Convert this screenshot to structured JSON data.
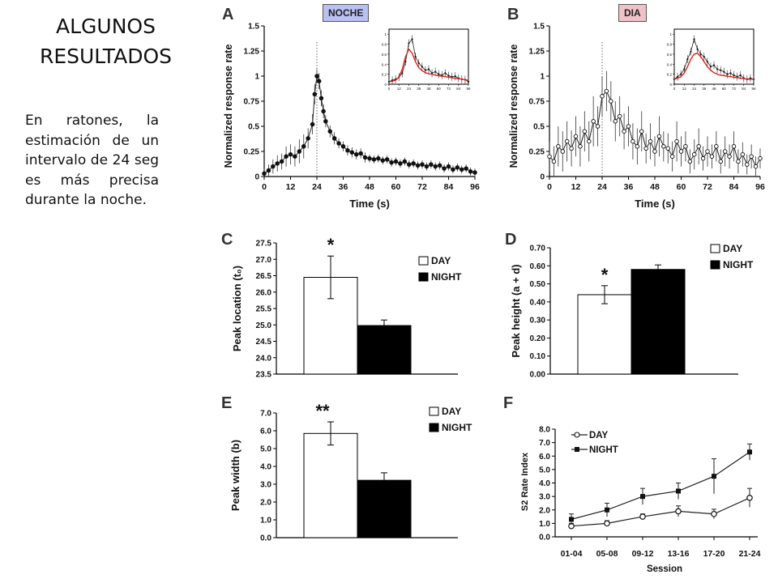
{
  "slide": {
    "title": "ALGUNOS RESULTADOS",
    "body": "En ratones, la estimación de un intervalo de 24 seg es más precisa durante la noche.",
    "badge_noche": "NOCHE",
    "badge_dia": "DIA"
  },
  "colors": {
    "bar_day": "#ffffff",
    "bar_night": "#000000",
    "fit_line": "#e0201b",
    "marker_line": "#666666"
  },
  "chart_data": [
    {
      "panel": "A",
      "type": "line",
      "xlabel": "Time (s)",
      "ylabel": "Normalized response rate",
      "xlim": [
        0,
        96
      ],
      "ylim": [
        0,
        1.5
      ],
      "xticks": [
        0,
        12,
        24,
        36,
        48,
        60,
        72,
        84,
        96
      ],
      "xtick_labels": [
        "0",
        "12",
        "24",
        "36",
        "48",
        "60",
        "72",
        "84",
        "96"
      ],
      "yticks": [
        0,
        0.25,
        0.5,
        0.75,
        1,
        1.25,
        1.5
      ],
      "ytick_labels": [
        "0",
        "0.25",
        "0.5",
        "0.75",
        "1",
        "1.25",
        "1.5"
      ],
      "marker_x": 24,
      "marker": "filled",
      "series": [
        {
          "x": [
            0,
            2,
            4,
            6,
            8,
            10,
            12,
            14,
            16,
            18,
            20,
            22,
            23,
            24,
            25,
            26,
            27,
            28,
            30,
            32,
            34,
            36,
            38,
            40,
            42,
            44,
            46,
            48,
            50,
            52,
            54,
            56,
            58,
            60,
            62,
            64,
            66,
            68,
            70,
            72,
            74,
            76,
            78,
            80,
            82,
            84,
            86,
            88,
            90,
            92,
            94,
            96
          ],
          "y": [
            0.03,
            0.06,
            0.1,
            0.13,
            0.15,
            0.2,
            0.22,
            0.2,
            0.25,
            0.3,
            0.38,
            0.52,
            0.82,
            1.0,
            0.95,
            0.78,
            0.65,
            0.55,
            0.45,
            0.38,
            0.33,
            0.3,
            0.26,
            0.24,
            0.22,
            0.23,
            0.19,
            0.18,
            0.17,
            0.18,
            0.16,
            0.17,
            0.14,
            0.15,
            0.13,
            0.15,
            0.12,
            0.13,
            0.11,
            0.12,
            0.1,
            0.12,
            0.1,
            0.11,
            0.08,
            0.1,
            0.07,
            0.09,
            0.07,
            0.08,
            0.05,
            0.04
          ],
          "err": [
            0.05,
            0.06,
            0.07,
            0.08,
            0.08,
            0.1,
            0.1,
            0.1,
            0.12,
            0.12,
            0.1,
            0.1,
            0.1,
            0.07,
            0.08,
            0.08,
            0.07,
            0.06,
            0.06,
            0.06,
            0.05,
            0.05,
            0.05,
            0.05,
            0.05,
            0.05,
            0.05,
            0.04,
            0.04,
            0.04,
            0.04,
            0.04,
            0.04,
            0.04,
            0.04,
            0.04,
            0.04,
            0.04,
            0.04,
            0.04,
            0.04,
            0.04,
            0.04,
            0.04,
            0.04,
            0.04,
            0.04,
            0.04,
            0.04,
            0.04,
            0.04,
            0.04
          ]
        }
      ],
      "inset": {
        "xticks": [
          0,
          12,
          24,
          36,
          48,
          60,
          72,
          84,
          96
        ],
        "xtick_labels": [
          "0",
          "12",
          "24",
          "36",
          "48",
          "60",
          "72",
          "84",
          "96"
        ],
        "yticks": [
          0,
          0.2,
          0.4,
          0.6,
          0.8,
          1
        ],
        "ytick_labels": [
          "0",
          "0.2",
          "0.4",
          "0.6",
          "0.8",
          "1"
        ],
        "xlim": [
          0,
          96
        ],
        "ylim": [
          0,
          1.1
        ],
        "data_x": [
          0,
          4,
          8,
          12,
          16,
          20,
          24,
          28,
          32,
          36,
          40,
          44,
          48,
          52,
          56,
          60,
          64,
          68,
          72,
          76,
          80,
          84,
          88,
          92,
          96
        ],
        "data_y": [
          0.05,
          0.08,
          0.1,
          0.14,
          0.22,
          0.45,
          0.82,
          0.9,
          0.55,
          0.42,
          0.35,
          0.28,
          0.3,
          0.22,
          0.25,
          0.2,
          0.18,
          0.22,
          0.17,
          0.15,
          0.16,
          0.12,
          0.1,
          0.09,
          0.05
        ],
        "fit_x": [
          0,
          4,
          8,
          12,
          16,
          20,
          24,
          28,
          32,
          36,
          40,
          44,
          48,
          52,
          56,
          60,
          64,
          68,
          72,
          76,
          80,
          84,
          88,
          92,
          96
        ],
        "fit_y": [
          0.05,
          0.06,
          0.08,
          0.14,
          0.3,
          0.55,
          0.7,
          0.62,
          0.45,
          0.33,
          0.27,
          0.23,
          0.21,
          0.2,
          0.18,
          0.17,
          0.16,
          0.15,
          0.14,
          0.13,
          0.12,
          0.11,
          0.1,
          0.09,
          0.08
        ]
      }
    },
    {
      "panel": "B",
      "type": "line",
      "xlabel": "Time (s)",
      "ylabel": "Normalized response rate",
      "xlim": [
        0,
        96
      ],
      "ylim": [
        0,
        1.5
      ],
      "xticks": [
        0,
        12,
        24,
        36,
        48,
        60,
        72,
        84,
        96
      ],
      "xtick_labels": [
        "0",
        "12",
        "24",
        "36",
        "48",
        "60",
        "72",
        "84",
        "96"
      ],
      "yticks": [
        0,
        0.25,
        0.5,
        0.75,
        1,
        1.25,
        1.5
      ],
      "ytick_labels": [
        "0",
        "0.25",
        "0.5",
        "0.75",
        "1",
        "1.25",
        "1.5"
      ],
      "marker_x": 24,
      "marker": "open",
      "series": [
        {
          "x": [
            0,
            2,
            4,
            6,
            8,
            10,
            12,
            14,
            16,
            18,
            20,
            22,
            24,
            26,
            28,
            30,
            32,
            34,
            36,
            38,
            40,
            42,
            44,
            46,
            48,
            50,
            52,
            54,
            56,
            58,
            60,
            62,
            64,
            66,
            68,
            70,
            72,
            74,
            76,
            78,
            80,
            82,
            84,
            86,
            88,
            90,
            92,
            94,
            96
          ],
          "y": [
            0.2,
            0.15,
            0.3,
            0.25,
            0.35,
            0.28,
            0.4,
            0.3,
            0.45,
            0.35,
            0.55,
            0.5,
            0.8,
            0.85,
            0.75,
            0.55,
            0.6,
            0.45,
            0.5,
            0.35,
            0.3,
            0.45,
            0.28,
            0.35,
            0.25,
            0.4,
            0.3,
            0.28,
            0.2,
            0.35,
            0.25,
            0.3,
            0.15,
            0.22,
            0.3,
            0.18,
            0.25,
            0.2,
            0.3,
            0.15,
            0.25,
            0.2,
            0.3,
            0.15,
            0.22,
            0.12,
            0.2,
            0.1,
            0.18
          ],
          "err": [
            0.15,
            0.15,
            0.2,
            0.2,
            0.2,
            0.18,
            0.2,
            0.2,
            0.2,
            0.2,
            0.25,
            0.2,
            0.2,
            0.2,
            0.2,
            0.2,
            0.2,
            0.18,
            0.2,
            0.18,
            0.18,
            0.2,
            0.15,
            0.18,
            0.15,
            0.2,
            0.15,
            0.15,
            0.15,
            0.2,
            0.15,
            0.15,
            0.12,
            0.15,
            0.18,
            0.12,
            0.15,
            0.12,
            0.15,
            0.12,
            0.15,
            0.12,
            0.15,
            0.12,
            0.12,
            0.1,
            0.12,
            0.1,
            0.1
          ]
        }
      ],
      "inset": {
        "xticks": [
          0,
          12,
          24,
          36,
          48,
          60,
          72,
          84,
          96
        ],
        "xtick_labels": [
          "0",
          "12",
          "24",
          "36",
          "48",
          "60",
          "72",
          "84",
          "96"
        ],
        "yticks": [
          0,
          0.2,
          0.4,
          0.6,
          0.8,
          1
        ],
        "ytick_labels": [
          "0",
          "0.2",
          "0.4",
          "0.6",
          "0.8",
          "1"
        ],
        "xlim": [
          0,
          96
        ],
        "ylim": [
          0,
          1.1
        ],
        "data_x": [
          0,
          4,
          8,
          12,
          16,
          20,
          24,
          28,
          32,
          36,
          40,
          44,
          48,
          52,
          56,
          60,
          64,
          68,
          72,
          76,
          80,
          84,
          88,
          92,
          96
        ],
        "data_y": [
          0.1,
          0.15,
          0.2,
          0.3,
          0.5,
          0.65,
          0.9,
          0.7,
          0.6,
          0.55,
          0.45,
          0.35,
          0.38,
          0.3,
          0.28,
          0.25,
          0.2,
          0.22,
          0.18,
          0.15,
          0.18,
          0.12,
          0.1,
          0.12,
          0.1
        ],
        "fit_x": [
          0,
          4,
          8,
          12,
          16,
          20,
          24,
          28,
          32,
          36,
          40,
          44,
          48,
          52,
          56,
          60,
          64,
          68,
          72,
          76,
          80,
          84,
          88,
          92,
          96
        ],
        "fit_y": [
          0.1,
          0.12,
          0.15,
          0.22,
          0.35,
          0.5,
          0.6,
          0.62,
          0.55,
          0.45,
          0.35,
          0.28,
          0.23,
          0.2,
          0.18,
          0.17,
          0.16,
          0.15,
          0.14,
          0.13,
          0.12,
          0.11,
          0.1,
          0.1,
          0.1
        ]
      }
    },
    {
      "panel": "C",
      "type": "bar",
      "ylabel": "Peak location (t₀)",
      "ylim": [
        23.5,
        27.5
      ],
      "yticks": [
        23.5,
        24.0,
        24.5,
        25.0,
        25.5,
        26.0,
        26.5,
        27.0,
        27.5
      ],
      "ytick_labels": [
        "23.5",
        "24.0",
        "24.5",
        "25.0",
        "25.5",
        "26.0",
        "26.5",
        "27.0",
        "27.5"
      ],
      "series": [
        {
          "name": "DAY",
          "value": 26.45,
          "err": 0.65
        },
        {
          "name": "NIGHT",
          "value": 24.98,
          "err": 0.17
        }
      ],
      "annotation": "*",
      "legend": [
        "DAY",
        "NIGHT"
      ],
      "legend_position": "top-right"
    },
    {
      "panel": "D",
      "type": "bar",
      "ylabel": "Peak height (a + d)",
      "ylim": [
        0,
        0.7
      ],
      "yticks": [
        0,
        0.1,
        0.2,
        0.3,
        0.4,
        0.5,
        0.6,
        0.7
      ],
      "ytick_labels": [
        "0.00",
        "0.10",
        "0.20",
        "0.30",
        "0.40",
        "0.50",
        "0.60",
        "0.70"
      ],
      "series": [
        {
          "name": "DAY",
          "value": 0.44,
          "err": 0.05
        },
        {
          "name": "NIGHT",
          "value": 0.58,
          "err": 0.025
        }
      ],
      "annotation": "*",
      "legend": [
        "DAY",
        "NIGHT"
      ],
      "legend_position": "top-right"
    },
    {
      "panel": "E",
      "type": "bar",
      "ylabel": "Peak width (b)",
      "ylim": [
        0,
        7
      ],
      "yticks": [
        0,
        1,
        2,
        3,
        4,
        5,
        6,
        7
      ],
      "ytick_labels": [
        "0.0",
        "1.0",
        "2.0",
        "3.0",
        "4.0",
        "5.0",
        "6.0",
        "7.0"
      ],
      "series": [
        {
          "name": "DAY",
          "value": 5.85,
          "err": 0.65
        },
        {
          "name": "NIGHT",
          "value": 3.22,
          "err": 0.42
        }
      ],
      "annotation": "**",
      "legend": [
        "DAY",
        "NIGHT"
      ],
      "legend_position": "top-right"
    },
    {
      "panel": "F",
      "type": "line",
      "xlabel": "Session",
      "ylabel": "S2 Rate Index",
      "ylim": [
        0,
        8
      ],
      "yticks": [
        0,
        1,
        2,
        3,
        4,
        5,
        6,
        7,
        8
      ],
      "ytick_labels": [
        "0.0",
        "1.0",
        "2.0",
        "3.0",
        "4.0",
        "5.0",
        "6.0",
        "7.0",
        "8.0"
      ],
      "categories": [
        "01-04",
        "05-08",
        "09-12",
        "13-16",
        "17-20",
        "21-24"
      ],
      "series": [
        {
          "name": "DAY",
          "values": [
            0.8,
            1.0,
            1.5,
            1.9,
            1.7,
            2.9
          ],
          "err": [
            0.2,
            0.2,
            0.2,
            0.4,
            0.35,
            0.7
          ]
        },
        {
          "name": "NIGHT",
          "values": [
            1.3,
            2.0,
            3.0,
            3.4,
            4.5,
            6.3
          ],
          "err": [
            0.4,
            0.5,
            0.6,
            0.6,
            1.3,
            0.6
          ]
        }
      ],
      "legend_position": "top-left"
    }
  ]
}
